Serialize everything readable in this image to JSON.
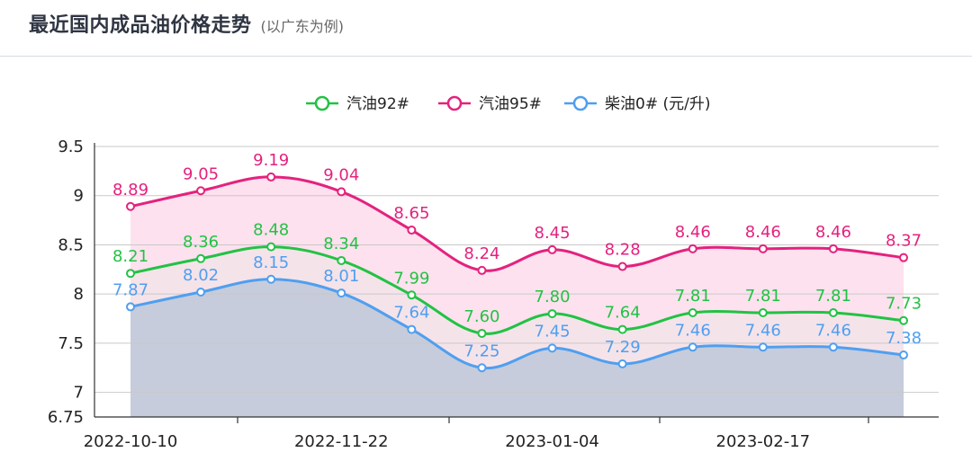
{
  "header": {
    "title": "最近国内成品油价格走势",
    "subtitle": "(以广东为例)"
  },
  "chart_data": {
    "type": "area",
    "title": "最近国内成品油价格走势",
    "subtitle": "(以广东为例)",
    "unit_note": "(元/升)",
    "x": [
      "2022-10-10",
      "",
      "",
      "2022-11-22",
      "",
      "",
      "2023-01-04",
      "",
      "",
      "2023-02-17",
      "",
      ""
    ],
    "x_tick_labels": [
      "2022-10-10",
      "2022-11-22",
      "2023-01-04",
      "2023-02-17"
    ],
    "ylim": [
      6.75,
      9.5
    ],
    "y_ticks": [
      6.75,
      7,
      7.5,
      8,
      8.5,
      9,
      9.5
    ],
    "y_tick_labels": [
      "6.75",
      "7",
      "7.5",
      "8",
      "8.5",
      "9",
      "9.5"
    ],
    "grid": true,
    "legend_position": "top",
    "series": [
      {
        "name": "汽油92#",
        "color": "#22c244",
        "fill": "#f5e3ea",
        "values": [
          8.21,
          8.36,
          8.48,
          8.34,
          7.99,
          7.6,
          7.8,
          7.64,
          7.81,
          7.81,
          7.81,
          7.73
        ],
        "labels": [
          "8.21",
          "8.36",
          "8.48",
          "8.34",
          "7.99",
          "7.60",
          "7.80",
          "7.64",
          "7.81",
          "7.81",
          "7.81",
          "7.73"
        ]
      },
      {
        "name": "汽油95#",
        "color": "#e4227e",
        "fill": "#fde1ee",
        "values": [
          8.89,
          9.05,
          9.19,
          9.04,
          8.65,
          8.24,
          8.45,
          8.28,
          8.46,
          8.46,
          8.46,
          8.37
        ],
        "labels": [
          "8.89",
          "9.05",
          "9.19",
          "9.04",
          "8.65",
          "8.24",
          "8.45",
          "8.28",
          "8.46",
          "8.46",
          "8.46",
          "8.37"
        ]
      },
      {
        "name": "柴油0#",
        "color": "#4f9ff0",
        "fill": "#c6ccdb",
        "values": [
          7.87,
          8.02,
          8.15,
          8.01,
          7.64,
          7.25,
          7.45,
          7.29,
          7.46,
          7.46,
          7.46,
          7.38
        ],
        "labels": [
          "7.87",
          "8.02",
          "8.15",
          "8.01",
          "7.64",
          "7.25",
          "7.45",
          "7.29",
          "7.46",
          "7.46",
          "7.46",
          "7.38"
        ]
      }
    ]
  }
}
